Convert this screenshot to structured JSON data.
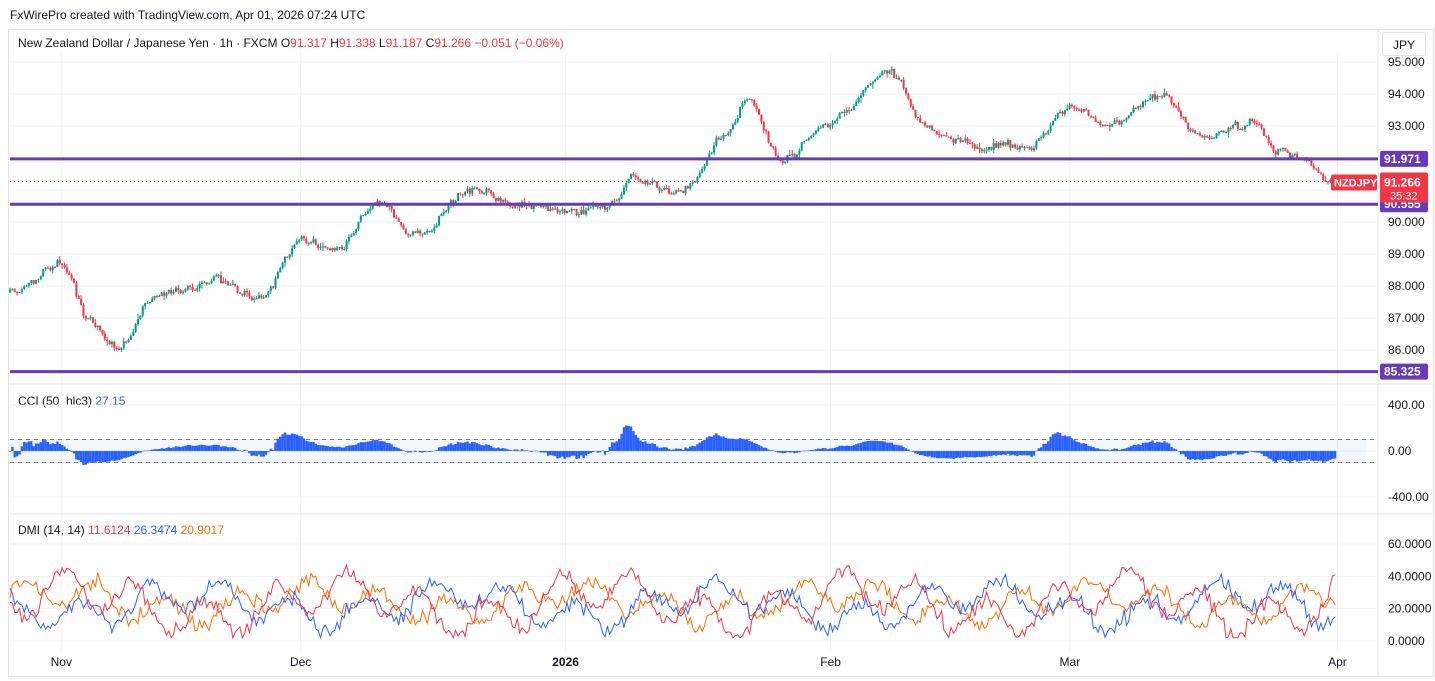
{
  "caption": "FxWirePro created with TradingView.com, Apr 01, 2026 07:24 UTC",
  "currency_button": "JPY",
  "main_legend": {
    "title": "New Zealand Dollar / Japanese Yen · 1h · FXCM",
    "o_label": "O",
    "o_value": "91.317",
    "h_label": "H",
    "h_value": "91.338",
    "l_label": "L",
    "l_value": "91.187",
    "c_label": "C",
    "c_value": "91.266",
    "change": "−0.051 (−0.06%)"
  },
  "cci_legend": {
    "title": "CCI (50, hlc3)",
    "value": "27.15"
  },
  "dmi_legend": {
    "title": "DMI (14, 14)",
    "plus": "11.6124",
    "minus": "26.3474",
    "adx": "20.9017"
  },
  "price_labels": {
    "symbol": "NZDJPY",
    "last": "91.266",
    "countdown": "35:32",
    "line_upper": "91.971",
    "line_lower": "90.555",
    "line_bottom": "85.325"
  },
  "colors": {
    "up": "#089981",
    "down": "#f23645",
    "hline": "#673ab7",
    "cci": "#2962ff",
    "plus_di": "#f23645",
    "minus_di": "#2962ff",
    "adx": "#ff6d00"
  },
  "chart_data": [
    {
      "type": "candlestick",
      "title": "New Zealand Dollar / Japanese Yen · 1h · FXCM",
      "ylim": [
        85.0,
        95.3
      ],
      "y_ticks": [
        "95.000",
        "94.000",
        "93.000",
        "91.971",
        "91.266",
        "90.555",
        "90.000",
        "89.000",
        "88.000",
        "87.000",
        "86.000",
        "85.325"
      ],
      "x_ticks": [
        "Nov",
        "Dec",
        "2026",
        "Feb",
        "Mar",
        "Apr"
      ],
      "horizontal_lines": [
        91.971,
        90.555,
        85.325
      ],
      "last_price": 91.266,
      "path_keypoints": [
        {
          "x": "Oct 28",
          "y": 87.8
        },
        {
          "x": "Nov 3",
          "y": 88.7
        },
        {
          "x": "Nov 6",
          "y": 86.9
        },
        {
          "x": "Nov 9",
          "y": 86.0
        },
        {
          "x": "Nov 14",
          "y": 87.7
        },
        {
          "x": "Nov 21",
          "y": 88.2
        },
        {
          "x": "Nov 26",
          "y": 87.6
        },
        {
          "x": "Dec 1",
          "y": 89.5
        },
        {
          "x": "Dec 5",
          "y": 89.1
        },
        {
          "x": "Dec 10",
          "y": 90.6
        },
        {
          "x": "Dec 14",
          "y": 89.5
        },
        {
          "x": "Dec 21",
          "y": 91.1
        },
        {
          "x": "Dec 26",
          "y": 90.5
        },
        {
          "x": "Jan 1",
          "y": 90.4
        },
        {
          "x": "Jan 5",
          "y": 90.3
        },
        {
          "x": "Jan 9",
          "y": 91.4
        },
        {
          "x": "Jan 14",
          "y": 90.9
        },
        {
          "x": "Jan 20",
          "y": 92.8
        },
        {
          "x": "Jan 22",
          "y": 93.9
        },
        {
          "x": "Jan 26",
          "y": 91.9
        },
        {
          "x": "Feb 1",
          "y": 93.2
        },
        {
          "x": "Feb 8",
          "y": 94.7
        },
        {
          "x": "Feb 12",
          "y": 92.9
        },
        {
          "x": "Feb 17",
          "y": 92.4
        },
        {
          "x": "Feb 24",
          "y": 92.4
        },
        {
          "x": "Mar 1",
          "y": 93.7
        },
        {
          "x": "Mar 5",
          "y": 93.0
        },
        {
          "x": "Mar 12",
          "y": 94.0
        },
        {
          "x": "Mar 16",
          "y": 92.6
        },
        {
          "x": "Mar 22",
          "y": 93.1
        },
        {
          "x": "Mar 25",
          "y": 92.3
        },
        {
          "x": "Mar 28",
          "y": 91.9
        },
        {
          "x": "Mar 31",
          "y": 91.3
        }
      ]
    },
    {
      "type": "bar",
      "title": "CCI (50, hlc3)",
      "ylim": [
        -500,
        500
      ],
      "y_ticks": [
        "400.00",
        "0.00",
        "-400.00"
      ],
      "bands": [
        100,
        -100
      ],
      "last_value": 27.15
    },
    {
      "type": "line",
      "title": "DMI (14, 14)",
      "ylim": [
        -5,
        70
      ],
      "y_ticks": [
        "60.0000",
        "40.0000",
        "20.0000",
        "0.0000"
      ],
      "series": [
        {
          "name": "+DI",
          "last": 11.6124
        },
        {
          "name": "-DI",
          "last": 26.3474
        },
        {
          "name": "ADX",
          "last": 20.9017
        }
      ]
    }
  ]
}
